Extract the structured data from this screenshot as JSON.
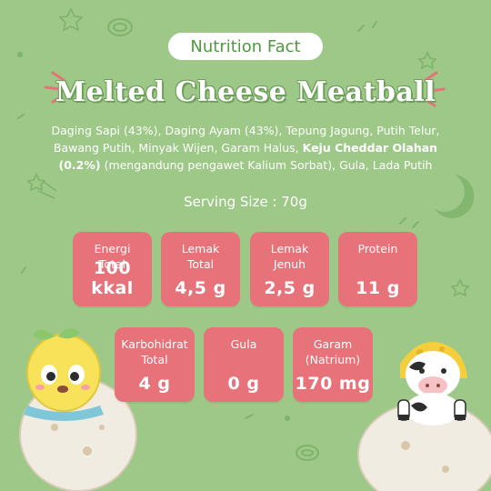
{
  "header": {
    "badge": "Nutrition Fact",
    "title": "Melted Cheese Meatball"
  },
  "ingredients": {
    "part1": "Daging Sapi (43%), Daging Ayam (43%), Tepung Jagung, Putih Telur, Bawang Putih, Minyak Wijen, Garam Halus, ",
    "highlight": "Keju Cheddar Olahan (0.2%)",
    "part2": " (mengandung pengawet Kalium Sorbat), Gula, Lada Putih"
  },
  "serving": "Serving Size : 70g",
  "nutrients": [
    {
      "label": "Energi\nTotal",
      "value": "100 kkal"
    },
    {
      "label": "Lemak\nTotal",
      "value": "4,5 g"
    },
    {
      "label": "Lemak\nJenuh",
      "value": "2,5 g"
    },
    {
      "label": "Protein",
      "value": "11 g"
    },
    {
      "label": "Karbohidrat\nTotal",
      "value": "4 g"
    },
    {
      "label": "Gula",
      "value": "0 g"
    },
    {
      "label": "Garam\n(Natrium)",
      "value": "170 mg"
    }
  ],
  "colors": {
    "background": "#9dc887",
    "card": "#e8727a",
    "accent": "#4f9a3e"
  }
}
